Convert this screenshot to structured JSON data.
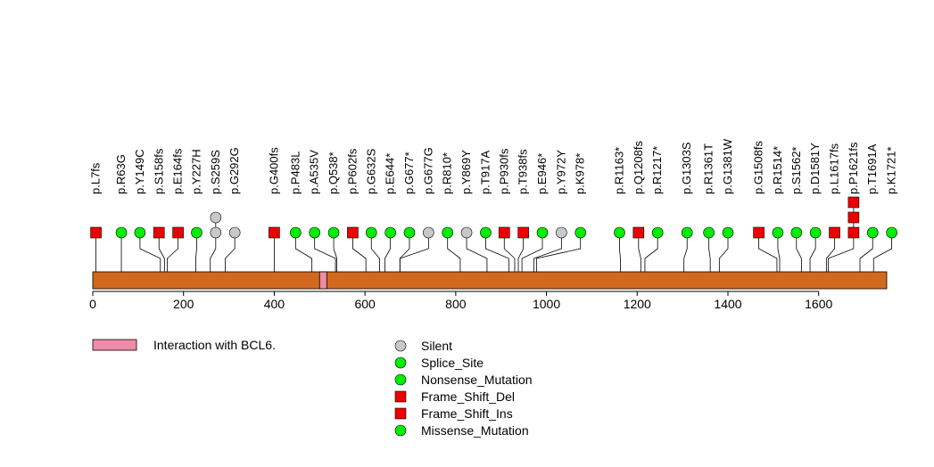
{
  "chart_data": {
    "type": "lollipop",
    "title": "",
    "xlabel": "",
    "ylabel": "",
    "xlim": [
      0,
      1750
    ],
    "x_ticks": [
      0,
      200,
      400,
      600,
      800,
      1000,
      1200,
      1400,
      1600
    ],
    "domain": {
      "start": 500,
      "end": 515,
      "label": "Interaction with BCL6.",
      "color": "#f08ca8"
    },
    "protein": {
      "length": 1750,
      "color": "#d2691e"
    },
    "mutations": [
      {
        "label": "p.L7fs",
        "pos": 7,
        "slot": 7,
        "markers": [
          "Frame_Shift_Del"
        ]
      },
      {
        "label": "p.R63G",
        "pos": 63,
        "slot": 63,
        "markers": [
          "Missense_Mutation"
        ]
      },
      {
        "label": "p.Y149C",
        "pos": 149,
        "slot": 104,
        "markers": [
          "Missense_Mutation"
        ]
      },
      {
        "label": "p.S158fs",
        "pos": 158,
        "slot": 146,
        "markers": [
          "Frame_Shift_Del"
        ]
      },
      {
        "label": "p.E164fs",
        "pos": 164,
        "slot": 188,
        "markers": [
          "Frame_Shift_Del"
        ]
      },
      {
        "label": "p.Y227H",
        "pos": 227,
        "slot": 229,
        "markers": [
          "Missense_Mutation"
        ]
      },
      {
        "label": "p.S259S",
        "pos": 259,
        "slot": 271,
        "markers": [
          "Silent",
          "Silent"
        ]
      },
      {
        "label": "p.G292G",
        "pos": 292,
        "slot": 313,
        "markers": [
          "Silent"
        ]
      },
      {
        "label": "p.G400fs",
        "pos": 400,
        "slot": 400,
        "markers": [
          "Frame_Shift_Del"
        ]
      },
      {
        "label": "p.P483L",
        "pos": 483,
        "slot": 447,
        "markers": [
          "Missense_Mutation"
        ]
      },
      {
        "label": "p.A535V",
        "pos": 535,
        "slot": 489,
        "markers": [
          "Missense_Mutation"
        ]
      },
      {
        "label": "p.Q538*",
        "pos": 538,
        "slot": 531,
        "markers": [
          "Nonsense_Mutation"
        ]
      },
      {
        "label": "p.P602fs",
        "pos": 602,
        "slot": 573,
        "markers": [
          "Frame_Shift_Del"
        ]
      },
      {
        "label": "p.G632S",
        "pos": 632,
        "slot": 614,
        "markers": [
          "Missense_Mutation"
        ]
      },
      {
        "label": "p.E644*",
        "pos": 644,
        "slot": 656,
        "markers": [
          "Nonsense_Mutation"
        ]
      },
      {
        "label": "p.G677*",
        "pos": 677,
        "slot": 698,
        "markers": [
          "Nonsense_Mutation"
        ]
      },
      {
        "label": "p.G677G",
        "pos": 677,
        "slot": 740,
        "markers": [
          "Silent"
        ]
      },
      {
        "label": "p.R810*",
        "pos": 810,
        "slot": 782,
        "markers": [
          "Nonsense_Mutation"
        ]
      },
      {
        "label": "p.Y869Y",
        "pos": 869,
        "slot": 824,
        "markers": [
          "Silent"
        ]
      },
      {
        "label": "p.T917A",
        "pos": 917,
        "slot": 866,
        "markers": [
          "Missense_Mutation"
        ]
      },
      {
        "label": "p.P930fs",
        "pos": 930,
        "slot": 907,
        "markers": [
          "Frame_Shift_Del"
        ]
      },
      {
        "label": "p.T938fs",
        "pos": 938,
        "slot": 949,
        "markers": [
          "Frame_Shift_Del"
        ]
      },
      {
        "label": "p.E946*",
        "pos": 946,
        "slot": 991,
        "markers": [
          "Nonsense_Mutation"
        ]
      },
      {
        "label": "p.Y972Y",
        "pos": 972,
        "slot": 1033,
        "markers": [
          "Silent"
        ]
      },
      {
        "label": "p.K978*",
        "pos": 978,
        "slot": 1075,
        "markers": [
          "Nonsense_Mutation"
        ]
      },
      {
        "label": "p.R1163*",
        "pos": 1163,
        "slot": 1161,
        "markers": [
          "Nonsense_Mutation"
        ]
      },
      {
        "label": "p.Q1208fs",
        "pos": 1208,
        "slot": 1203,
        "markers": [
          "Frame_Shift_Del"
        ]
      },
      {
        "label": "p.R1217*",
        "pos": 1217,
        "slot": 1245,
        "markers": [
          "Nonsense_Mutation"
        ]
      },
      {
        "label": "p.G1303S",
        "pos": 1303,
        "slot": 1310,
        "markers": [
          "Missense_Mutation"
        ]
      },
      {
        "label": "p.R1361T",
        "pos": 1361,
        "slot": 1358,
        "markers": [
          "Missense_Mutation"
        ]
      },
      {
        "label": "p.G1381W",
        "pos": 1381,
        "slot": 1400,
        "markers": [
          "Missense_Mutation"
        ]
      },
      {
        "label": "p.G1508fs",
        "pos": 1508,
        "slot": 1468,
        "markers": [
          "Frame_Shift_Del"
        ]
      },
      {
        "label": "p.R1514*",
        "pos": 1514,
        "slot": 1510,
        "markers": [
          "Nonsense_Mutation"
        ]
      },
      {
        "label": "p.S1562*",
        "pos": 1562,
        "slot": 1551,
        "markers": [
          "Nonsense_Mutation"
        ]
      },
      {
        "label": "p.D1581Y",
        "pos": 1581,
        "slot": 1593,
        "markers": [
          "Missense_Mutation"
        ]
      },
      {
        "label": "p.L1617fs",
        "pos": 1617,
        "slot": 1635,
        "markers": [
          "Frame_Shift_Del"
        ]
      },
      {
        "label": "p.P1621fs",
        "pos": 1621,
        "slot": 1677,
        "markers": [
          "Frame_Shift_Del",
          "Frame_Shift_Del",
          "Frame_Shift_Del"
        ]
      },
      {
        "label": "p.T1691A",
        "pos": 1691,
        "slot": 1719,
        "markers": [
          "Missense_Mutation"
        ]
      },
      {
        "label": "p.K1721*",
        "pos": 1721,
        "slot": 1761,
        "markers": [
          "Nonsense_Mutation"
        ]
      }
    ],
    "legend": [
      {
        "name": "Silent",
        "shape": "circle",
        "color": "#c8c8c8"
      },
      {
        "name": "Splice_Site",
        "shape": "circle",
        "color": "#00ee00"
      },
      {
        "name": "Nonsense_Mutation",
        "shape": "circle",
        "color": "#00ee00"
      },
      {
        "name": "Frame_Shift_Del",
        "shape": "square",
        "color": "#ee0000"
      },
      {
        "name": "Frame_Shift_Ins",
        "shape": "square",
        "color": "#ee0000"
      },
      {
        "name": "Missense_Mutation",
        "shape": "circle",
        "color": "#00ee00"
      }
    ]
  }
}
